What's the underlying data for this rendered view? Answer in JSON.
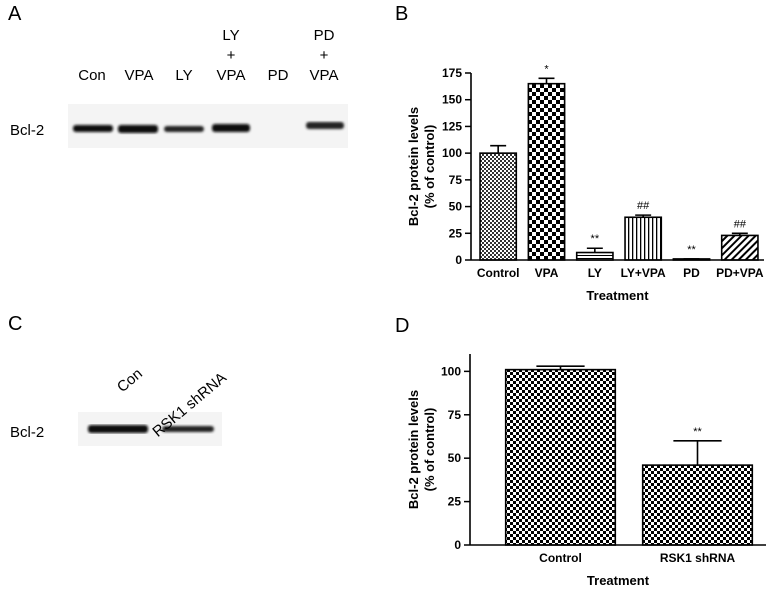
{
  "blots": [
    {
      "label": "A",
      "row_label": "Bcl-2",
      "lanes": [
        [
          "Con"
        ],
        [
          "VPA"
        ],
        [
          "LY"
        ],
        [
          "LY",
          "+",
          "VPA"
        ],
        [
          "PD"
        ],
        [
          "PD",
          "+",
          "VPA"
        ]
      ]
    },
    {
      "label": "C",
      "row_label": "Bcl-2",
      "lanes": [
        [
          "Con"
        ],
        [
          "RSK1 shRNA"
        ]
      ]
    }
  ],
  "chart_data": [
    {
      "type": "bar",
      "label": "B",
      "ylabel": [
        "Bcl-2 protein levels",
        "(% of control)"
      ],
      "xlabel": "Treatment",
      "categories": [
        "Control",
        "VPA",
        "LY",
        "LY+VPA",
        "PD",
        "PD+VPA"
      ],
      "values": [
        100,
        165,
        7,
        40,
        1,
        23
      ],
      "errors": [
        7,
        5,
        4,
        2,
        0,
        2
      ],
      "value_annotations": [
        null,
        "*",
        "**",
        "##",
        "**",
        "##"
      ],
      "color": "#000000",
      "ylim": [
        0,
        175
      ],
      "yticks": [
        0,
        25,
        50,
        75,
        100,
        125,
        150,
        175
      ]
    },
    {
      "type": "bar",
      "label": "D",
      "ylabel": [
        "Bcl-2 protein levels",
        "(% of control)"
      ],
      "xlabel": "Treatment",
      "categories": [
        "Control",
        "RSK1 shRNA"
      ],
      "values": [
        101,
        46
      ],
      "errors": [
        2,
        14
      ],
      "value_annotations": [
        null,
        "**"
      ],
      "color": "#000000",
      "ylim": [
        0,
        110
      ],
      "yticks": [
        0,
        25,
        50,
        75,
        100
      ]
    }
  ]
}
